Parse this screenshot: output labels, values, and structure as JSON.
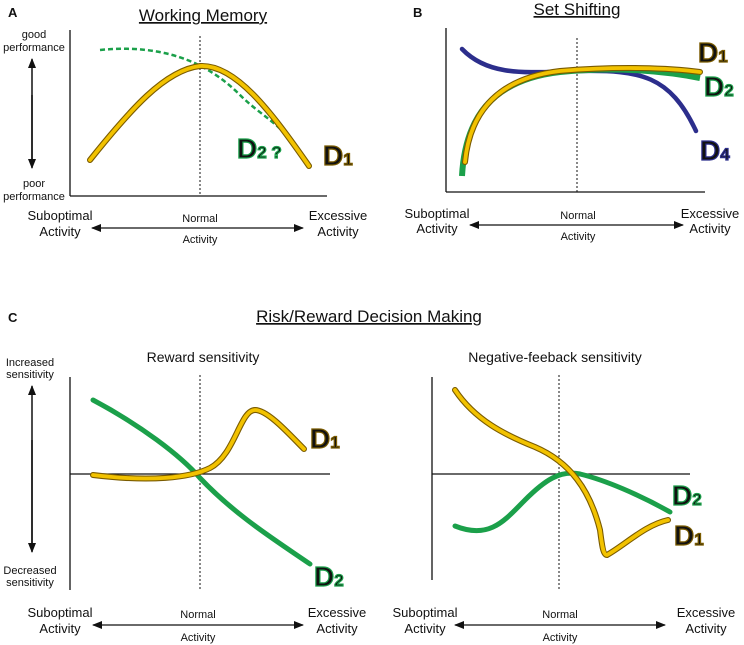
{
  "panels": {
    "a": {
      "letter": "A",
      "title": "Working Memory",
      "y_top": [
        "good",
        "performance"
      ],
      "y_bottom": [
        "poor",
        "performance"
      ],
      "x_left": [
        "Suboptimal",
        "Activity"
      ],
      "x_mid": [
        "Normal",
        "Activity"
      ],
      "x_right": [
        "Excessive",
        "Activity"
      ],
      "label_d2": {
        "main": "D",
        "sub": "2",
        "extra": " ?"
      },
      "label_d1": {
        "main": "D",
        "sub": "1"
      }
    },
    "b": {
      "letter": "B",
      "title": "Set Shifting",
      "x_left": [
        "Suboptimal",
        "Activity"
      ],
      "x_mid": [
        "Normal",
        "Activity"
      ],
      "x_right": [
        "Excessive",
        "Activity"
      ],
      "label_d1": {
        "main": "D",
        "sub": "1"
      },
      "label_d2": {
        "main": "D",
        "sub": "2"
      },
      "label_d4": {
        "main": "D",
        "sub": "4"
      }
    },
    "c": {
      "letter": "C",
      "title": "Risk/Reward Decision Making",
      "left_subtitle": "Reward sensitivity",
      "right_subtitle": "Negative-feeback sensitivity",
      "y_top": [
        "Increased",
        "sensitivity"
      ],
      "y_bottom": [
        "Decreased",
        "sensitivity"
      ],
      "left": {
        "x_left": [
          "Suboptimal",
          "Activity"
        ],
        "x_mid": [
          "Normal",
          "Activity"
        ],
        "x_right": [
          "Excessive",
          "Activity"
        ],
        "label_d1": {
          "main": "D",
          "sub": "1"
        },
        "label_d2": {
          "main": "D",
          "sub": "2"
        }
      },
      "right": {
        "x_left": [
          "Suboptimal",
          "Activity"
        ],
        "x_mid": [
          "Normal",
          "Activity"
        ],
        "x_right": [
          "Excessive",
          "Activity"
        ],
        "label_d2": {
          "main": "D",
          "sub": "2"
        },
        "label_d1": {
          "main": "D",
          "sub": "1"
        }
      }
    }
  },
  "colors": {
    "d1_fill": "#f2c200",
    "d1_outline": "#7a5b00",
    "d2": "#1ba04a",
    "d4": "#2c2e8c",
    "axis": "#111111"
  }
}
